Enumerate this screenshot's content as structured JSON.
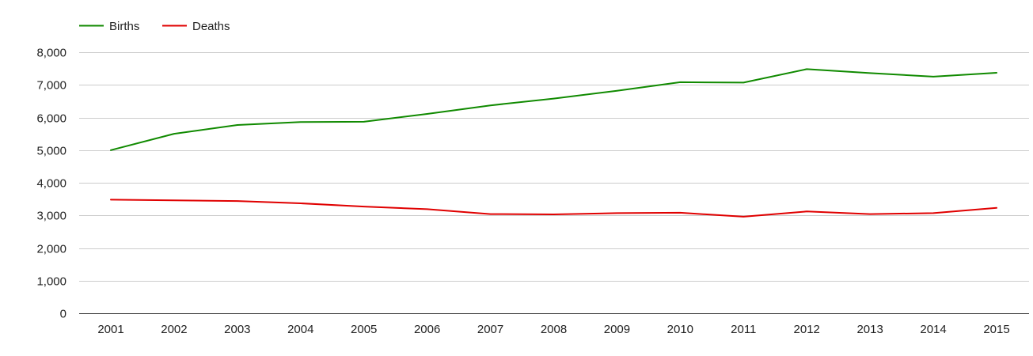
{
  "chart_data": {
    "type": "line",
    "title": "",
    "xlabel": "",
    "ylabel": "",
    "x": [
      "2001",
      "2002",
      "2003",
      "2004",
      "2005",
      "2006",
      "2007",
      "2008",
      "2009",
      "2010",
      "2011",
      "2012",
      "2013",
      "2014",
      "2015"
    ],
    "ylim": [
      0,
      8000
    ],
    "yticks": [
      0,
      1000,
      2000,
      3000,
      4000,
      5000,
      6000,
      7000,
      8000
    ],
    "ytick_labels": [
      "0",
      "1,000",
      "2,000",
      "3,000",
      "4,000",
      "5,000",
      "6,000",
      "7,000",
      "8,000"
    ],
    "grid": true,
    "legend_position": "top-left",
    "series": [
      {
        "name": "Births",
        "color": "#108a00",
        "values": [
          5000,
          5500,
          5770,
          5860,
          5870,
          6110,
          6370,
          6580,
          6820,
          7080,
          7070,
          7480,
          7360,
          7250,
          7370
        ]
      },
      {
        "name": "Deaths",
        "color": "#e00000",
        "values": [
          3480,
          3460,
          3440,
          3370,
          3270,
          3190,
          3040,
          3030,
          3070,
          3080,
          2960,
          3120,
          3040,
          3070,
          3230
        ]
      }
    ]
  }
}
